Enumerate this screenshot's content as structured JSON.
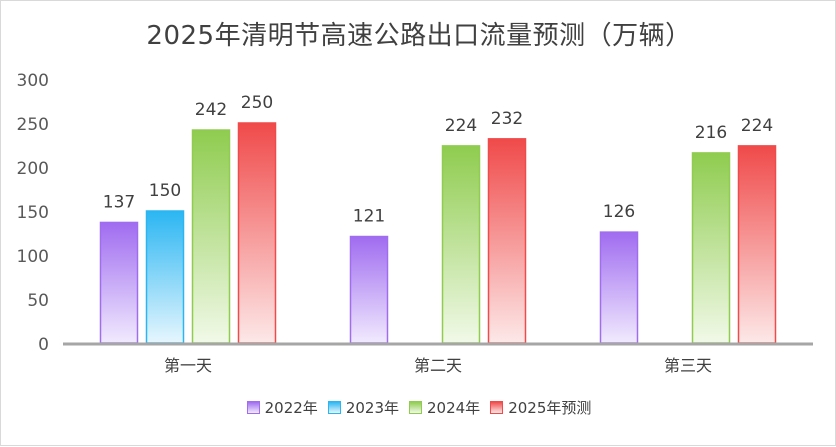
{
  "chart_data": {
    "type": "bar",
    "title": "2025年清明节高速公路出口流量预测（万辆）",
    "categories": [
      "第一天",
      "第二天",
      "第三天"
    ],
    "series": [
      {
        "name": "2022年",
        "values": [
          137,
          121,
          126
        ],
        "color": "#a06cf0",
        "fade": "#f1eafe"
      },
      {
        "name": "2023年",
        "values": [
          150,
          null,
          null
        ],
        "color": "#2bb6f2",
        "fade": "#e6f6fe"
      },
      {
        "name": "2024年",
        "values": [
          242,
          224,
          216
        ],
        "color": "#8fcc4f",
        "fade": "#f1f9e8"
      },
      {
        "name": "2025年预测",
        "values": [
          250,
          232,
          224
        ],
        "color": "#f04a4a",
        "fade": "#fde8e8"
      }
    ],
    "yticks": [
      0,
      50,
      100,
      150,
      200,
      250,
      300
    ],
    "ylim": [
      0,
      300
    ],
    "xlabel": "",
    "ylabel": "",
    "grid": false,
    "legend_position": "bottom"
  }
}
